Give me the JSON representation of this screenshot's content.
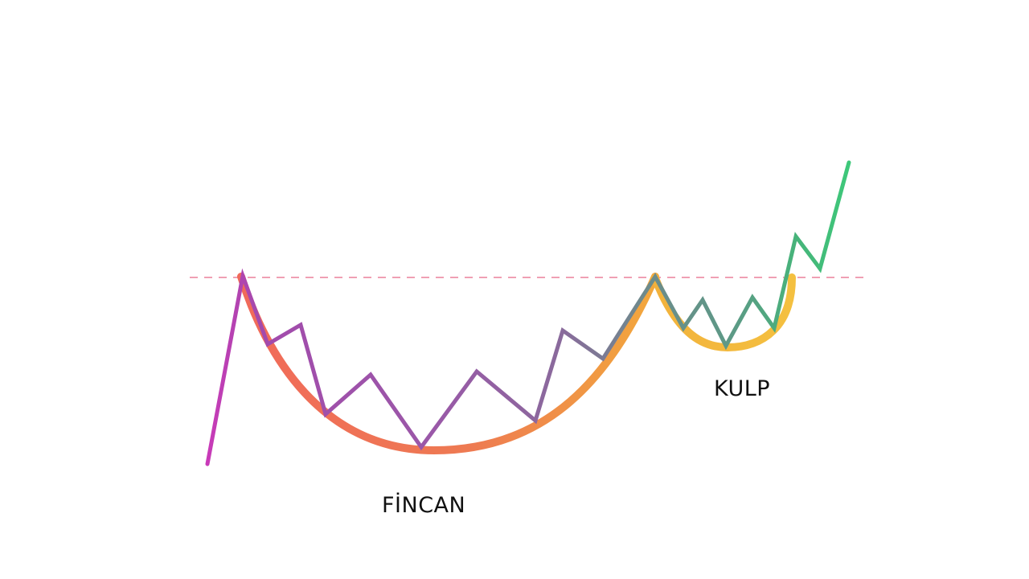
{
  "labels": {
    "cup": "FİNCAN",
    "handle": "KULP"
  },
  "colors": {
    "background": "#ffffff",
    "resistance_line": "#f0a0b4",
    "cup_start": "#f06a5a",
    "cup_end": "#f2a03c",
    "handle_arc": "#f2b63c",
    "price_start": "#c33bb8",
    "price_mid": "#8a6ab0",
    "price_late": "#5e9a8a",
    "price_breakout": "#3ec47a"
  }
}
